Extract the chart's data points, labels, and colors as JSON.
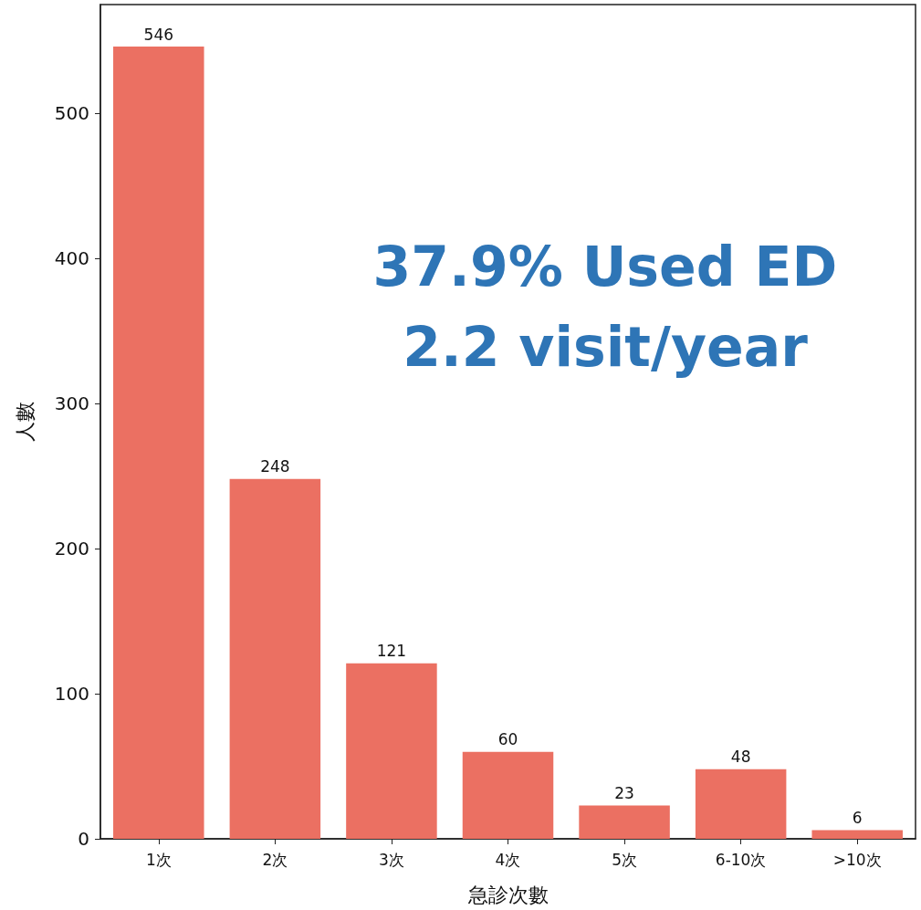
{
  "chart_data": {
    "type": "bar",
    "xlabel": "急診次數",
    "ylabel": "人數",
    "categories": [
      "1次",
      "2次",
      "3次",
      "4次",
      "5次",
      "6-10次",
      ">10次"
    ],
    "values": [
      546,
      248,
      121,
      60,
      23,
      48,
      6
    ],
    "color": "#eb7062",
    "ylim": [
      0,
      575
    ],
    "yticks": [
      0,
      100,
      200,
      300,
      400,
      500
    ],
    "data_labels": true,
    "grid": false,
    "annotations": [
      "37.9% Used ED",
      "2.2 visit/year"
    ]
  }
}
